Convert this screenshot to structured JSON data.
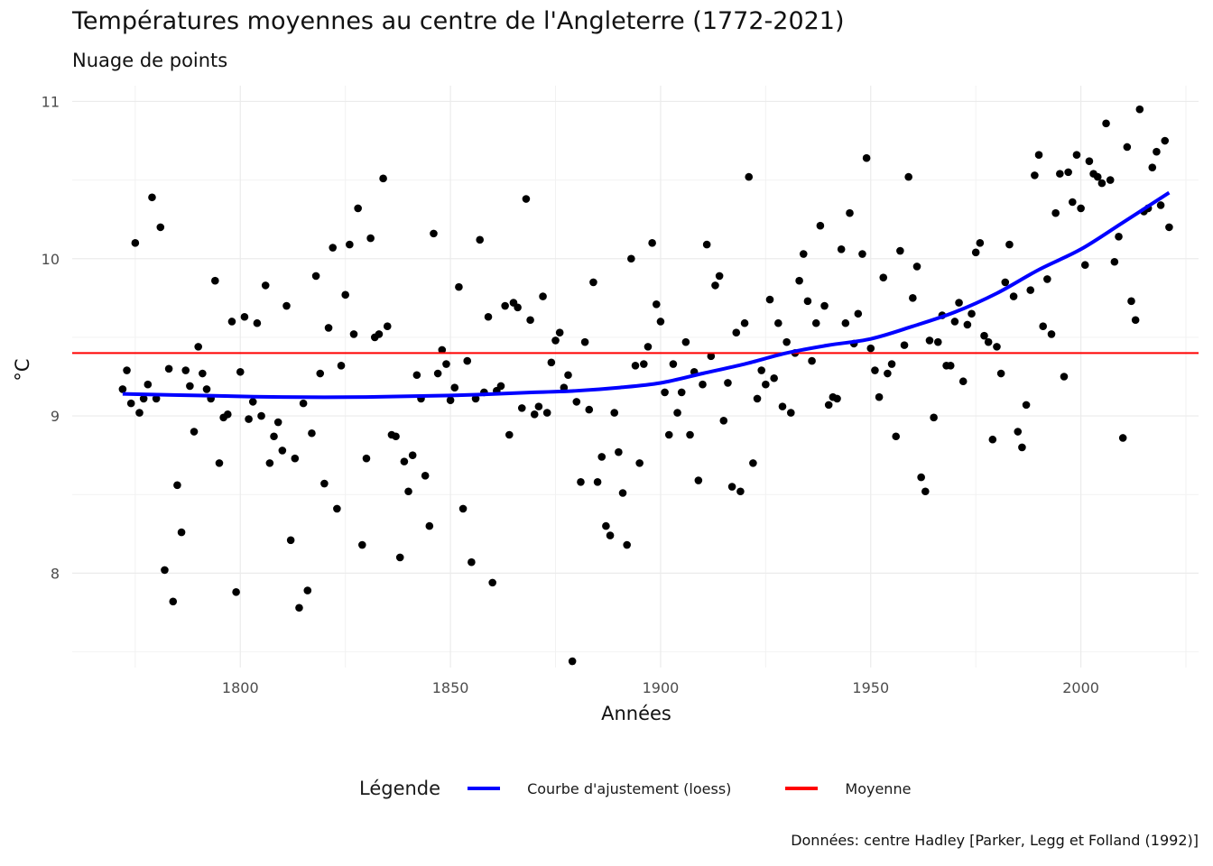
{
  "title": "Températures moyennes au centre de l'Angleterre (1772-2021)",
  "subtitle": "Nuage de points",
  "caption": "Données: centre Hadley [Parker, Legg et Folland (1992)]",
  "legend": {
    "title": "Légende",
    "items": [
      {
        "label": "Courbe d'ajustement (loess)",
        "color": "#0000ff"
      },
      {
        "label": "Moyenne",
        "color": "#ff0000"
      }
    ]
  },
  "chart_data": {
    "type": "scatter",
    "title": "Températures moyennes au centre de l'Angleterre (1772-2021)",
    "subtitle": "Nuage de points",
    "xlabel": "Années",
    "ylabel": "°C",
    "xlim": [
      1760,
      2028
    ],
    "ylim": [
      7.4,
      11.1
    ],
    "xticks": [
      1800,
      1850,
      1900,
      1950,
      2000
    ],
    "yticks": [
      8,
      9,
      10,
      11
    ],
    "grid": true,
    "legend_position": "bottom",
    "mean": 9.4,
    "points": [
      [
        1772,
        9.17
      ],
      [
        1773,
        9.29
      ],
      [
        1774,
        9.08
      ],
      [
        1775,
        10.1
      ],
      [
        1776,
        9.02
      ],
      [
        1777,
        9.11
      ],
      [
        1778,
        9.2
      ],
      [
        1779,
        10.39
      ],
      [
        1780,
        9.11
      ],
      [
        1781,
        10.2
      ],
      [
        1782,
        8.02
      ],
      [
        1783,
        9.3
      ],
      [
        1784,
        7.82
      ],
      [
        1785,
        8.56
      ],
      [
        1786,
        8.26
      ],
      [
        1787,
        9.29
      ],
      [
        1788,
        9.19
      ],
      [
        1789,
        8.9
      ],
      [
        1790,
        9.44
      ],
      [
        1791,
        9.27
      ],
      [
        1792,
        9.17
      ],
      [
        1793,
        9.11
      ],
      [
        1794,
        9.86
      ],
      [
        1795,
        8.7
      ],
      [
        1796,
        8.99
      ],
      [
        1797,
        9.01
      ],
      [
        1798,
        9.6
      ],
      [
        1799,
        7.88
      ],
      [
        1800,
        9.28
      ],
      [
        1801,
        9.63
      ],
      [
        1802,
        8.98
      ],
      [
        1803,
        9.09
      ],
      [
        1804,
        9.59
      ],
      [
        1805,
        9.0
      ],
      [
        1806,
        9.83
      ],
      [
        1807,
        8.7
      ],
      [
        1808,
        8.87
      ],
      [
        1809,
        8.96
      ],
      [
        1810,
        8.78
      ],
      [
        1811,
        9.7
      ],
      [
        1812,
        8.21
      ],
      [
        1813,
        8.73
      ],
      [
        1814,
        7.78
      ],
      [
        1815,
        9.08
      ],
      [
        1816,
        7.89
      ],
      [
        1817,
        8.89
      ],
      [
        1818,
        9.89
      ],
      [
        1819,
        9.27
      ],
      [
        1820,
        8.57
      ],
      [
        1821,
        9.56
      ],
      [
        1822,
        10.07
      ],
      [
        1823,
        8.41
      ],
      [
        1824,
        9.32
      ],
      [
        1825,
        9.77
      ],
      [
        1826,
        10.09
      ],
      [
        1827,
        9.52
      ],
      [
        1828,
        10.32
      ],
      [
        1829,
        8.18
      ],
      [
        1830,
        8.73
      ],
      [
        1831,
        10.13
      ],
      [
        1832,
        9.5
      ],
      [
        1833,
        9.52
      ],
      [
        1834,
        10.51
      ],
      [
        1835,
        9.57
      ],
      [
        1836,
        8.88
      ],
      [
        1837,
        8.87
      ],
      [
        1838,
        8.1
      ],
      [
        1839,
        8.71
      ],
      [
        1840,
        8.52
      ],
      [
        1841,
        8.75
      ],
      [
        1842,
        9.26
      ],
      [
        1843,
        9.11
      ],
      [
        1844,
        8.62
      ],
      [
        1845,
        8.3
      ],
      [
        1846,
        10.16
      ],
      [
        1847,
        9.27
      ],
      [
        1848,
        9.42
      ],
      [
        1849,
        9.33
      ],
      [
        1850,
        9.1
      ],
      [
        1851,
        9.18
      ],
      [
        1852,
        9.82
      ],
      [
        1853,
        8.41
      ],
      [
        1854,
        9.35
      ],
      [
        1855,
        8.07
      ],
      [
        1856,
        9.11
      ],
      [
        1857,
        10.12
      ],
      [
        1858,
        9.15
      ],
      [
        1859,
        9.63
      ],
      [
        1860,
        7.94
      ],
      [
        1861,
        9.16
      ],
      [
        1862,
        9.19
      ],
      [
        1863,
        9.7
      ],
      [
        1864,
        8.88
      ],
      [
        1865,
        9.72
      ],
      [
        1866,
        9.69
      ],
      [
        1867,
        9.05
      ],
      [
        1868,
        10.38
      ],
      [
        1869,
        9.61
      ],
      [
        1870,
        9.01
      ],
      [
        1871,
        9.06
      ],
      [
        1872,
        9.76
      ],
      [
        1873,
        9.02
      ],
      [
        1874,
        9.34
      ],
      [
        1875,
        9.48
      ],
      [
        1876,
        9.53
      ],
      [
        1877,
        9.18
      ],
      [
        1878,
        9.26
      ],
      [
        1879,
        7.44
      ],
      [
        1880,
        9.09
      ],
      [
        1881,
        8.58
      ],
      [
        1882,
        9.47
      ],
      [
        1883,
        9.04
      ],
      [
        1884,
        9.85
      ],
      [
        1885,
        8.58
      ],
      [
        1886,
        8.74
      ],
      [
        1887,
        8.3
      ],
      [
        1888,
        8.24
      ],
      [
        1889,
        9.02
      ],
      [
        1890,
        8.77
      ],
      [
        1891,
        8.51
      ],
      [
        1892,
        8.18
      ],
      [
        1893,
        10.0
      ],
      [
        1894,
        9.32
      ],
      [
        1895,
        8.7
      ],
      [
        1896,
        9.33
      ],
      [
        1897,
        9.44
      ],
      [
        1898,
        10.1
      ],
      [
        1899,
        9.71
      ],
      [
        1900,
        9.6
      ],
      [
        1901,
        9.15
      ],
      [
        1902,
        8.88
      ],
      [
        1903,
        9.33
      ],
      [
        1904,
        9.02
      ],
      [
        1905,
        9.15
      ],
      [
        1906,
        9.47
      ],
      [
        1907,
        8.88
      ],
      [
        1908,
        9.28
      ],
      [
        1909,
        8.59
      ],
      [
        1910,
        9.2
      ],
      [
        1911,
        10.09
      ],
      [
        1912,
        9.38
      ],
      [
        1913,
        9.83
      ],
      [
        1914,
        9.89
      ],
      [
        1915,
        8.97
      ],
      [
        1916,
        9.21
      ],
      [
        1917,
        8.55
      ],
      [
        1918,
        9.53
      ],
      [
        1919,
        8.52
      ],
      [
        1920,
        9.59
      ],
      [
        1921,
        10.52
      ],
      [
        1922,
        8.7
      ],
      [
        1923,
        9.11
      ],
      [
        1924,
        9.29
      ],
      [
        1925,
        9.2
      ],
      [
        1926,
        9.74
      ],
      [
        1927,
        9.24
      ],
      [
        1928,
        9.59
      ],
      [
        1929,
        9.06
      ],
      [
        1930,
        9.47
      ],
      [
        1931,
        9.02
      ],
      [
        1932,
        9.4
      ],
      [
        1933,
        9.86
      ],
      [
        1934,
        10.03
      ],
      [
        1935,
        9.73
      ],
      [
        1936,
        9.35
      ],
      [
        1937,
        9.59
      ],
      [
        1938,
        10.21
      ],
      [
        1939,
        9.7
      ],
      [
        1940,
        9.07
      ],
      [
        1941,
        9.12
      ],
      [
        1942,
        9.11
      ],
      [
        1943,
        10.06
      ],
      [
        1944,
        9.59
      ],
      [
        1945,
        10.29
      ],
      [
        1946,
        9.46
      ],
      [
        1947,
        9.65
      ],
      [
        1948,
        10.03
      ],
      [
        1949,
        10.64
      ],
      [
        1950,
        9.43
      ],
      [
        1951,
        9.29
      ],
      [
        1952,
        9.12
      ],
      [
        1953,
        9.88
      ],
      [
        1954,
        9.27
      ],
      [
        1955,
        9.33
      ],
      [
        1956,
        8.87
      ],
      [
        1957,
        10.05
      ],
      [
        1958,
        9.45
      ],
      [
        1959,
        10.52
      ],
      [
        1960,
        9.75
      ],
      [
        1961,
        9.95
      ],
      [
        1962,
        8.61
      ],
      [
        1963,
        8.52
      ],
      [
        1964,
        9.48
      ],
      [
        1965,
        8.99
      ],
      [
        1966,
        9.47
      ],
      [
        1967,
        9.64
      ],
      [
        1968,
        9.32
      ],
      [
        1969,
        9.32
      ],
      [
        1970,
        9.6
      ],
      [
        1971,
        9.72
      ],
      [
        1972,
        9.22
      ],
      [
        1973,
        9.58
      ],
      [
        1974,
        9.65
      ],
      [
        1975,
        10.04
      ],
      [
        1976,
        10.1
      ],
      [
        1977,
        9.51
      ],
      [
        1978,
        9.47
      ],
      [
        1979,
        8.85
      ],
      [
        1980,
        9.44
      ],
      [
        1981,
        9.27
      ],
      [
        1982,
        9.85
      ],
      [
        1983,
        10.09
      ],
      [
        1984,
        9.76
      ],
      [
        1985,
        8.9
      ],
      [
        1986,
        8.8
      ],
      [
        1987,
        9.07
      ],
      [
        1988,
        9.8
      ],
      [
        1989,
        10.53
      ],
      [
        1990,
        10.66
      ],
      [
        1991,
        9.57
      ],
      [
        1992,
        9.87
      ],
      [
        1993,
        9.52
      ],
      [
        1994,
        10.29
      ],
      [
        1995,
        10.54
      ],
      [
        1996,
        9.25
      ],
      [
        1997,
        10.55
      ],
      [
        1998,
        10.36
      ],
      [
        1999,
        10.66
      ],
      [
        2000,
        10.32
      ],
      [
        2001,
        9.96
      ],
      [
        2002,
        10.62
      ],
      [
        2003,
        10.54
      ],
      [
        2004,
        10.52
      ],
      [
        2005,
        10.48
      ],
      [
        2006,
        10.86
      ],
      [
        2007,
        10.5
      ],
      [
        2008,
        9.98
      ],
      [
        2009,
        10.14
      ],
      [
        2010,
        8.86
      ],
      [
        2011,
        10.71
      ],
      [
        2012,
        9.73
      ],
      [
        2013,
        9.61
      ],
      [
        2014,
        10.95
      ],
      [
        2015,
        10.3
      ],
      [
        2016,
        10.32
      ],
      [
        2017,
        10.58
      ],
      [
        2018,
        10.68
      ],
      [
        2019,
        10.34
      ],
      [
        2020,
        10.75
      ],
      [
        2021,
        10.2
      ]
    ],
    "loess_curve": [
      [
        1772,
        9.14
      ],
      [
        1790,
        9.13
      ],
      [
        1810,
        9.12
      ],
      [
        1830,
        9.12
      ],
      [
        1850,
        9.13
      ],
      [
        1870,
        9.15
      ],
      [
        1880,
        9.16
      ],
      [
        1890,
        9.18
      ],
      [
        1900,
        9.21
      ],
      [
        1910,
        9.27
      ],
      [
        1920,
        9.33
      ],
      [
        1930,
        9.4
      ],
      [
        1940,
        9.45
      ],
      [
        1950,
        9.49
      ],
      [
        1960,
        9.57
      ],
      [
        1970,
        9.66
      ],
      [
        1980,
        9.78
      ],
      [
        1990,
        9.93
      ],
      [
        2000,
        10.06
      ],
      [
        2010,
        10.23
      ],
      [
        2021,
        10.42
      ]
    ]
  }
}
